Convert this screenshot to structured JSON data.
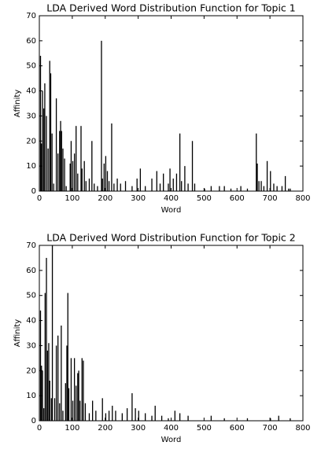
{
  "chart_data": [
    {
      "type": "bar",
      "title": "LDA Derived Word Distribution Function for Topic 1",
      "x_label": "Word",
      "y_label": "Affinity",
      "color": "#000000",
      "x": [
        2,
        5,
        8,
        12,
        15,
        20,
        25,
        30,
        33,
        37,
        42,
        50,
        55,
        60,
        63,
        66,
        70,
        75,
        80,
        92,
        95,
        100,
        105,
        110,
        115,
        125,
        128,
        135,
        140,
        150,
        158,
        165,
        175,
        187,
        190,
        195,
        200,
        205,
        210,
        218,
        225,
        235,
        245,
        260,
        280,
        295,
        305,
        320,
        340,
        355,
        365,
        375,
        390,
        395,
        405,
        415,
        425,
        430,
        440,
        450,
        463,
        470,
        500,
        520,
        545,
        560,
        580,
        610,
        630,
        657,
        660,
        665,
        672,
        680,
        690,
        700,
        710,
        720,
        735,
        745,
        755,
        760
      ],
      "values": [
        54,
        19,
        40,
        33,
        43,
        30,
        17,
        52,
        47,
        23,
        3,
        37,
        15,
        24,
        28,
        24,
        17,
        13,
        2,
        11,
        20,
        12,
        15,
        26,
        7,
        26,
        9,
        12,
        4,
        5,
        20,
        3,
        2,
        60,
        5,
        11,
        14,
        8,
        4,
        27,
        3,
        5,
        3,
        4,
        2,
        5,
        9,
        2,
        5,
        8,
        3,
        7,
        3,
        9,
        5,
        7,
        23,
        4,
        10,
        3,
        20,
        3,
        1,
        2,
        2,
        2,
        1,
        2,
        1,
        23,
        11,
        4,
        4,
        2,
        12,
        8,
        3,
        2,
        2,
        6,
        1,
        1
      ],
      "xlim": [
        0,
        800
      ],
      "xticks": [
        0,
        100,
        200,
        300,
        400,
        500,
        600,
        700,
        800
      ],
      "ylim": [
        0,
        70
      ],
      "yticks": [
        0,
        10,
        20,
        30,
        40,
        50,
        60,
        70
      ]
    },
    {
      "type": "bar",
      "title": "LDA Derived Word Distribution Function for Topic 2",
      "x_label": "Word",
      "y_label": "Affinity",
      "color": "#000000",
      "x": [
        2,
        5,
        8,
        12,
        16,
        20,
        23,
        27,
        30,
        35,
        38,
        45,
        50,
        55,
        60,
        65,
        70,
        78,
        82,
        85,
        88,
        95,
        100,
        105,
        110,
        115,
        118,
        122,
        128,
        132,
        138,
        150,
        160,
        170,
        190,
        200,
        210,
        220,
        230,
        250,
        265,
        280,
        290,
        300,
        320,
        340,
        350,
        370,
        390,
        410,
        425,
        450,
        520,
        560,
        630,
        700,
        725,
        760
      ],
      "values": [
        44,
        22,
        20,
        5,
        51,
        65,
        28,
        31,
        16,
        9,
        70,
        9,
        30,
        34,
        7,
        38,
        4,
        15,
        30,
        51,
        13,
        25,
        8,
        25,
        14,
        19,
        20,
        8,
        25,
        24,
        7,
        3,
        8,
        4,
        9,
        3,
        4,
        6,
        4,
        3,
        5,
        11,
        5,
        4,
        3,
        2,
        6,
        2,
        1,
        4,
        3,
        2,
        2,
        1,
        1,
        1,
        2,
        1
      ],
      "xlim": [
        0,
        800
      ],
      "xticks": [
        0,
        100,
        200,
        300,
        400,
        500,
        600,
        700,
        800
      ],
      "ylim": [
        0,
        70
      ],
      "yticks": [
        0,
        10,
        20,
        30,
        40,
        50,
        60,
        70
      ]
    }
  ]
}
